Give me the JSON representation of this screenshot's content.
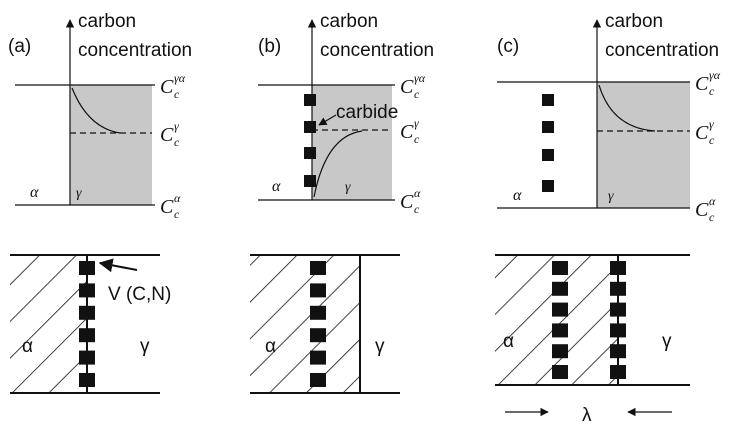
{
  "panels": [
    {
      "label": "(a)",
      "axis_label": {
        "line1": "carbon",
        "line2": "concentration"
      },
      "levels": [
        {
          "base": "C",
          "sub": "c",
          "sup": "γα"
        },
        {
          "base": "C",
          "sub": "c",
          "sup": "γ"
        },
        {
          "base": "C",
          "sub": "c",
          "sup": "α"
        }
      ],
      "phase_left": "α",
      "phase_right": "γ",
      "bottom_left": "α",
      "bottom_right": "γ",
      "annotation": "V (C,N)"
    },
    {
      "label": "(b)",
      "axis_label": {
        "line1": "carbon",
        "line2": "concentration"
      },
      "levels": [
        {
          "base": "C",
          "sub": "c",
          "sup": "γα"
        },
        {
          "base": "C",
          "sub": "c",
          "sup": "γ"
        },
        {
          "base": "C",
          "sub": "c",
          "sup": "α"
        }
      ],
      "phase_left": "α",
      "phase_right": "γ",
      "bottom_left": "α",
      "bottom_right": "γ",
      "annotation": "carbide"
    },
    {
      "label": "(c)",
      "axis_label": {
        "line1": "carbon",
        "line2": "concentration"
      },
      "levels": [
        {
          "base": "C",
          "sub": "c",
          "sup": "γα"
        },
        {
          "base": "C",
          "sub": "c",
          "sup": "γ"
        },
        {
          "base": "C",
          "sub": "c",
          "sup": "α"
        }
      ],
      "phase_left": "α",
      "phase_right": "γ",
      "bottom_left": "α",
      "bottom_right": "γ"
    }
  ],
  "spacing_label": "λ"
}
